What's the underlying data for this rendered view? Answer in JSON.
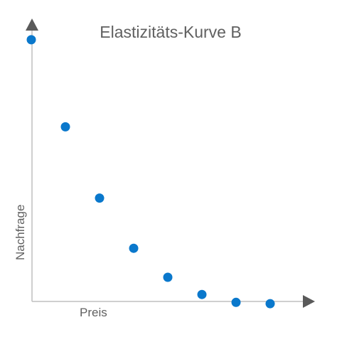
{
  "chart_data": {
    "type": "scatter",
    "title": "Elastizitäts-Kurve B",
    "xlabel": "Preis",
    "ylabel": "Nachfrage",
    "x": [
      0,
      1,
      2,
      3,
      4,
      5,
      6,
      7
    ],
    "y": [
      100,
      67,
      40,
      21,
      10,
      3.5,
      0.5,
      0
    ],
    "xlim": [
      0,
      8
    ],
    "ylim": [
      -4,
      104
    ],
    "grid": false,
    "tick_labels": false,
    "colors": {
      "marker": "#0a78cc",
      "axis": "#bfbfbf",
      "arrow": "#5a5a5a",
      "text": "#606060"
    }
  }
}
